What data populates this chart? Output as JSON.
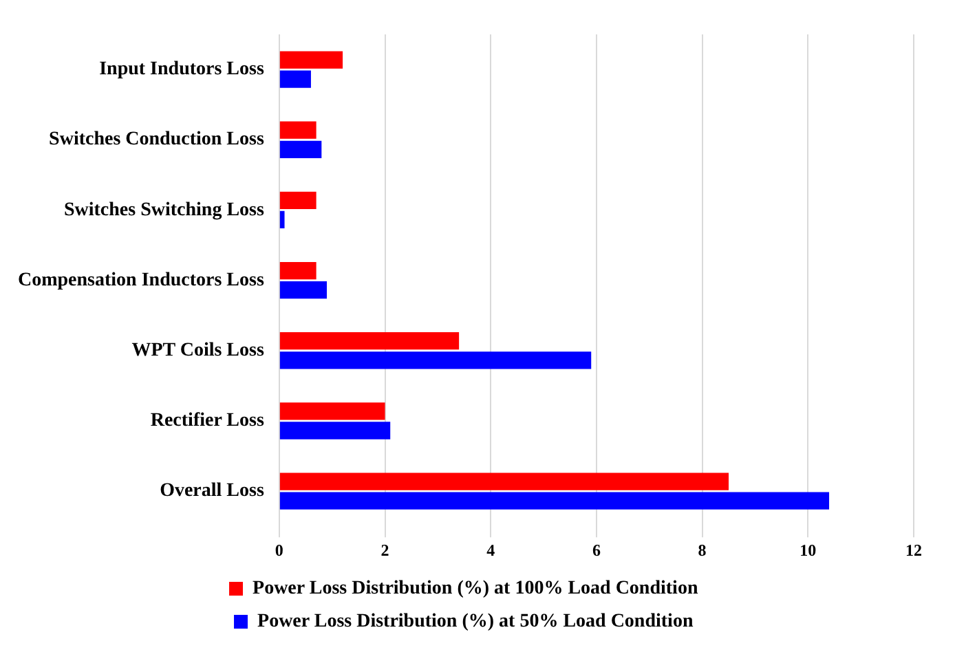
{
  "chart_data": {
    "type": "bar",
    "orientation": "horizontal",
    "categories": [
      "Input Indutors Loss",
      "Switches Conduction Loss",
      "Switches Switching Loss",
      "Compensation Inductors Loss",
      "WPT Coils Loss",
      "Rectifier Loss",
      "Overall Loss"
    ],
    "series": [
      {
        "name": "Power Loss Distribution (%) at 100% Load Condition",
        "color": "#ff0000",
        "values": [
          1.2,
          0.7,
          0.7,
          0.7,
          3.4,
          2.0,
          8.5
        ]
      },
      {
        "name": "Power Loss Distribution (%) at 50% Load Condition",
        "color": "#0000ff",
        "values": [
          0.6,
          0.8,
          0.1,
          0.9,
          5.9,
          2.1,
          10.4
        ]
      }
    ],
    "xlim": [
      0,
      12
    ],
    "xticks": [
      0,
      2,
      4,
      6,
      8,
      10,
      12
    ],
    "grid": "x",
    "legend": "bottom"
  }
}
